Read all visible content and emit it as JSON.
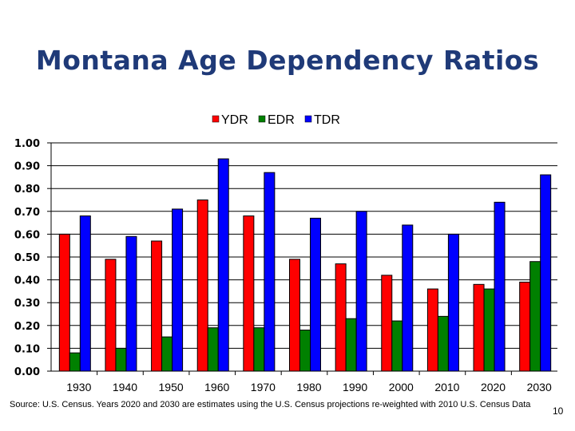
{
  "title": "Montana Age Dependency Ratios",
  "source_note": "Source: U.S. Census.  Years 2020 and 2030 are estimates using the U.S. Census projections re-weighted with 2010 U.S. Census Data",
  "page_number": "10",
  "chart_data": {
    "type": "bar",
    "title": "Montana Age Dependency Ratios",
    "xlabel": "",
    "ylabel": "",
    "categories": [
      "1930",
      "1940",
      "1950",
      "1960",
      "1970",
      "1980",
      "1990",
      "2000",
      "2010",
      "2020",
      "2030"
    ],
    "series": [
      {
        "name": "YDR",
        "color": "#ff0000",
        "values": [
          0.6,
          0.49,
          0.57,
          0.75,
          0.68,
          0.49,
          0.47,
          0.42,
          0.36,
          0.38,
          0.39
        ]
      },
      {
        "name": "EDR",
        "color": "#008000",
        "values": [
          0.08,
          0.1,
          0.15,
          0.19,
          0.19,
          0.18,
          0.23,
          0.22,
          0.24,
          0.36,
          0.48
        ]
      },
      {
        "name": "TDR",
        "color": "#0000ff",
        "values": [
          0.68,
          0.59,
          0.71,
          0.93,
          0.87,
          0.67,
          0.7,
          0.64,
          0.6,
          0.74,
          0.86
        ]
      }
    ],
    "ylim": [
      0,
      1.0
    ],
    "yticks": [
      "0.00",
      "0.10",
      "0.20",
      "0.30",
      "0.40",
      "0.50",
      "0.60",
      "0.70",
      "0.80",
      "0.90",
      "1.00"
    ],
    "grid": true,
    "legend": "top-center"
  }
}
